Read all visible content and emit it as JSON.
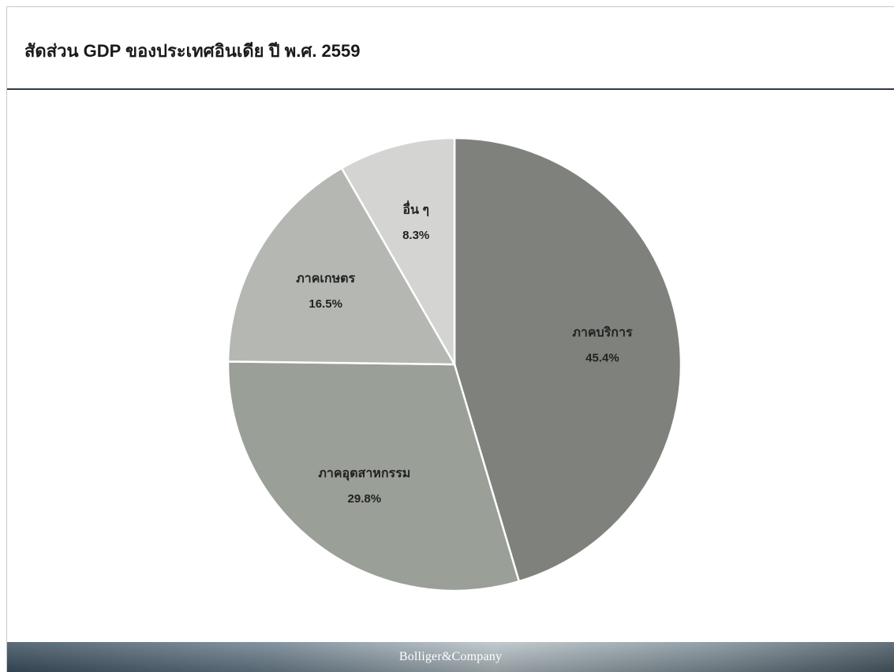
{
  "slide": {
    "title": "สัดส่วน GDP ของประเทศอินเดีย ปี พ.ศ. 2559"
  },
  "chart_data": {
    "type": "pie",
    "title": "สัดส่วน GDP ของประเทศอินเดีย ปี พ.ศ. 2559",
    "slices": [
      {
        "label": "ภาคบริการ",
        "value": 45.4,
        "display": "45.4%",
        "color": "#7f827c"
      },
      {
        "label": "ภาคอุตสาหกรรม",
        "value": 29.8,
        "display": "29.8%",
        "color": "#9a9f97"
      },
      {
        "label": "ภาคเกษตร",
        "value": 16.5,
        "display": "16.5%",
        "color": "#b5b8b2"
      },
      {
        "label": "อื่น ๆ",
        "value": 8.3,
        "display": "8.3%",
        "color": "#d4d5d2"
      }
    ],
    "start": "12 o'clock",
    "direction": "clockwise"
  },
  "footer": {
    "brand": "Bolliger&Company"
  }
}
